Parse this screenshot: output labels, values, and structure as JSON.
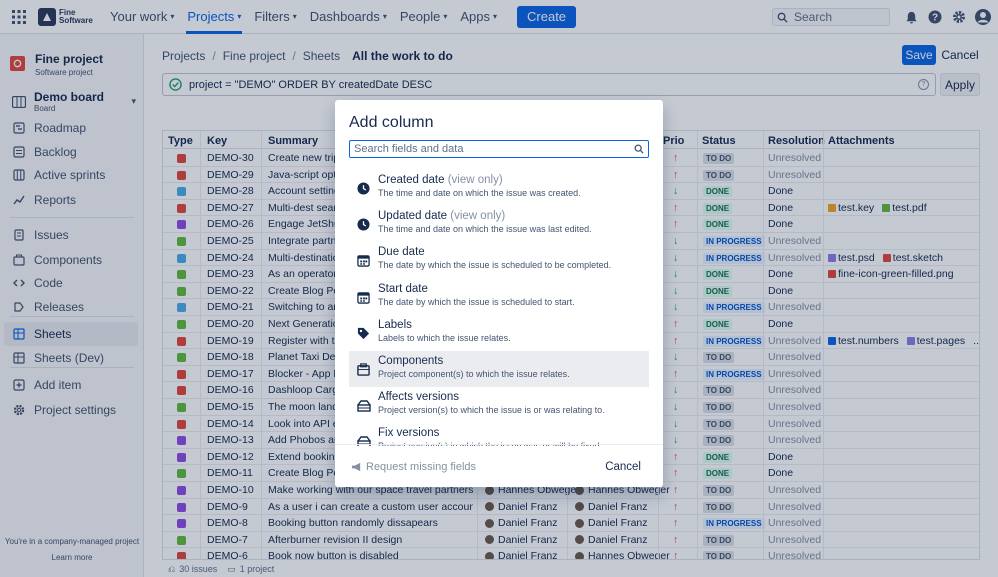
{
  "brand": {
    "name": "Fine Software",
    "line1": "Fine",
    "line2": "Software"
  },
  "topnav": {
    "items": [
      {
        "label": "Your work"
      },
      {
        "label": "Projects"
      },
      {
        "label": "Filters"
      },
      {
        "label": "Dashboards"
      },
      {
        "label": "People"
      },
      {
        "label": "Apps"
      }
    ],
    "active_index": 1,
    "create_label": "Create",
    "search_placeholder": "Search"
  },
  "sidebar": {
    "project_name": "Fine project",
    "project_type": "Software project",
    "board_name": "Demo board",
    "board_sub": "Board",
    "items": [
      {
        "label": "Roadmap",
        "icon": "roadmap-icon"
      },
      {
        "label": "Backlog",
        "icon": "backlog-icon"
      },
      {
        "label": "Active sprints",
        "icon": "sprints-icon"
      },
      {
        "label": "Reports",
        "icon": "reports-icon"
      },
      {
        "label": "Issues",
        "icon": "issues-icon"
      },
      {
        "label": "Components",
        "icon": "components-icon"
      },
      {
        "label": "Code",
        "icon": "code-icon"
      },
      {
        "label": "Releases",
        "icon": "releases-icon"
      },
      {
        "label": "Sheets",
        "icon": "sheets-icon"
      },
      {
        "label": "Sheets (Dev)",
        "icon": "sheets-dev-icon"
      },
      {
        "label": "Add item",
        "icon": "add-item-icon"
      },
      {
        "label": "Project settings",
        "icon": "settings-icon"
      }
    ],
    "active_index": 8,
    "footer_text": "You're in a company-managed project",
    "learn_more": "Learn more"
  },
  "breadcrumbs": [
    "Projects",
    "Fine project",
    "Sheets"
  ],
  "page_title": "All the work to do",
  "save_label": "Save",
  "cancel_label": "Cancel",
  "jql": "project = \"DEMO\" ORDER BY createdDate DESC",
  "apply_label": "Apply",
  "grid": {
    "headers": {
      "type": "Type",
      "key": "Key",
      "summary": "Summary",
      "priority": "Prio",
      "status": "Status",
      "resolution": "Resolution",
      "attachments": "Attachments"
    },
    "rows": [
      {
        "type": "bug",
        "key": "DEMO-30",
        "summary": "Create new trips wi",
        "prio": "high",
        "status": "TO DO",
        "resolution": "Unresolved",
        "att": []
      },
      {
        "type": "bug",
        "key": "DEMO-29",
        "summary": "Java-script optimiz",
        "prio": "high",
        "status": "TO DO",
        "resolution": "Unresolved",
        "att": []
      },
      {
        "type": "task",
        "key": "DEMO-28",
        "summary": "Account settings de",
        "prio": "low",
        "status": "DONE",
        "resolution": "Done",
        "att": []
      },
      {
        "type": "bug",
        "key": "DEMO-27",
        "summary": "Multi-dest search U",
        "prio": "high",
        "status": "DONE",
        "resolution": "Done",
        "att": [
          "test.key",
          "test.pdf"
        ]
      },
      {
        "type": "epic",
        "key": "DEMO-26",
        "summary": "Engage JetShuttle",
        "prio": "high",
        "status": "DONE",
        "resolution": "Done",
        "att": []
      },
      {
        "type": "story",
        "key": "DEMO-25",
        "summary": "Integrate partner tr",
        "prio": "low",
        "status": "IN PROGRESS",
        "resolution": "Unresolved",
        "att": []
      },
      {
        "type": "task",
        "key": "DEMO-24",
        "summary": "Multi-destination se",
        "prio": "low",
        "status": "IN PROGRESS",
        "resolution": "Unresolved",
        "att": [
          "test.psd",
          "test.sketch"
        ]
      },
      {
        "type": "story",
        "key": "DEMO-23",
        "summary": "As an operator I wa",
        "prio": "low",
        "status": "DONE",
        "resolution": "Done",
        "att": [
          "fine-icon-green-filled.png"
        ]
      },
      {
        "type": "story",
        "key": "DEMO-22",
        "summary": "Create Blog Post fo",
        "prio": "low",
        "status": "DONE",
        "resolution": "Done",
        "att": []
      },
      {
        "type": "task",
        "key": "DEMO-21",
        "summary": "Switching to annua",
        "prio": "low",
        "status": "IN PROGRESS",
        "resolution": "Unresolved",
        "att": []
      },
      {
        "type": "story",
        "key": "DEMO-20",
        "summary": "Next Generation ve",
        "prio": "high",
        "status": "DONE",
        "resolution": "Done",
        "att": []
      },
      {
        "type": "bug",
        "key": "DEMO-19",
        "summary": "Register with the M",
        "prio": "high",
        "status": "IN PROGRESS",
        "resolution": "Unresolved",
        "att": [
          "test.numbers",
          "test.pages",
          "..."
        ]
      },
      {
        "type": "story",
        "key": "DEMO-18",
        "summary": "Planet Taxi Device",
        "prio": "low",
        "status": "TO DO",
        "resolution": "Unresolved",
        "att": []
      },
      {
        "type": "bug",
        "key": "DEMO-17",
        "summary": "Blocker - App Basic",
        "prio": "high",
        "status": "IN PROGRESS",
        "resolution": "Unresolved",
        "att": []
      },
      {
        "type": "bug",
        "key": "DEMO-16",
        "summary": "Dashloop Cargo sy",
        "prio": "low",
        "status": "TO DO",
        "resolution": "Unresolved",
        "att": []
      },
      {
        "type": "story",
        "key": "DEMO-15",
        "summary": "The moon landing s",
        "prio": "low",
        "status": "TO DO",
        "resolution": "Unresolved",
        "att": []
      },
      {
        "type": "bug",
        "key": "DEMO-14",
        "summary": "Look into API errors",
        "prio": "low",
        "status": "TO DO",
        "resolution": "Unresolved",
        "att": []
      },
      {
        "type": "epic",
        "key": "DEMO-13",
        "summary": "Add Phobos and De",
        "prio": "low",
        "status": "TO DO",
        "resolution": "Unresolved",
        "att": []
      },
      {
        "type": "epic",
        "key": "DEMO-12",
        "summary": "Extend booking exp",
        "prio": "high",
        "status": "DONE",
        "resolution": "Done",
        "att": []
      },
      {
        "type": "story",
        "key": "DEMO-11",
        "summary": "Create Blog Post fo",
        "prio": "high",
        "status": "DONE",
        "resolution": "Done",
        "att": []
      },
      {
        "type": "epic",
        "key": "DEMO-10",
        "summary": "Make working with our space travel partners easier",
        "reporter": "Hannes Obweger",
        "assignee": "Hannes Obweger",
        "prio": "high",
        "status": "TO DO",
        "resolution": "Unresolved",
        "att": []
      },
      {
        "type": "epic",
        "key": "DEMO-9",
        "summary": "As a user i can create a custom user account and login",
        "reporter": "Daniel Franz",
        "assignee": "Daniel Franz",
        "prio": "high",
        "status": "TO DO",
        "resolution": "Unresolved",
        "att": []
      },
      {
        "type": "epic",
        "key": "DEMO-8",
        "summary": "Booking button randomly dissapears",
        "reporter": "Daniel Franz",
        "assignee": "Daniel Franz",
        "prio": "high",
        "status": "IN PROGRESS",
        "resolution": "Unresolved",
        "att": []
      },
      {
        "type": "story",
        "key": "DEMO-7",
        "summary": "Afterburner revision II design",
        "reporter": "Daniel Franz",
        "assignee": "Daniel Franz",
        "prio": "high",
        "status": "TO DO",
        "resolution": "Unresolved",
        "att": []
      },
      {
        "type": "bug",
        "key": "DEMO-6",
        "summary": "Book now button is disabled",
        "reporter": "Daniel Franz",
        "assignee": "Hannes Obweger",
        "prio": "high",
        "status": "TO DO",
        "resolution": "Unresolved",
        "att": []
      }
    ],
    "footer_issues": "30 issues",
    "footer_projects": "1 project"
  },
  "modal": {
    "title": "Add column",
    "search_placeholder": "Search fields and data",
    "options": [
      {
        "label": "Created date",
        "view_only": "(view only)",
        "desc": "The time and date on which the issue was created.",
        "icon": "clock-icon"
      },
      {
        "label": "Updated date",
        "view_only": "(view only)",
        "desc": "The time and date on which the issue was last edited.",
        "icon": "clock-icon"
      },
      {
        "label": "Due date",
        "view_only": "",
        "desc": "The date by which the issue is scheduled to be completed.",
        "icon": "calendar-icon"
      },
      {
        "label": "Start date",
        "view_only": "",
        "desc": "The date by which the issue is scheduled to start.",
        "icon": "calendar-icon"
      },
      {
        "label": "Labels",
        "view_only": "",
        "desc": "Labels to which the issue relates.",
        "icon": "tag-icon"
      },
      {
        "label": "Components",
        "view_only": "",
        "desc": "Project component(s) to which the issue relates.",
        "icon": "component-icon"
      },
      {
        "label": "Affects versions",
        "view_only": "",
        "desc": "Project version(s) to which the issue is or was relating to.",
        "icon": "version-icon"
      },
      {
        "label": "Fix versions",
        "view_only": "",
        "desc": "Project version(s) in which the issue was or will be fixed.",
        "icon": "version-icon"
      }
    ],
    "highlighted_index": 5,
    "request_label": "Request missing fields",
    "cancel_label": "Cancel"
  },
  "colors": {
    "accent": "#0c66e4",
    "bug": "#e2483d",
    "story": "#63ba3c",
    "task": "#4bade8",
    "epic": "#904ee2"
  }
}
